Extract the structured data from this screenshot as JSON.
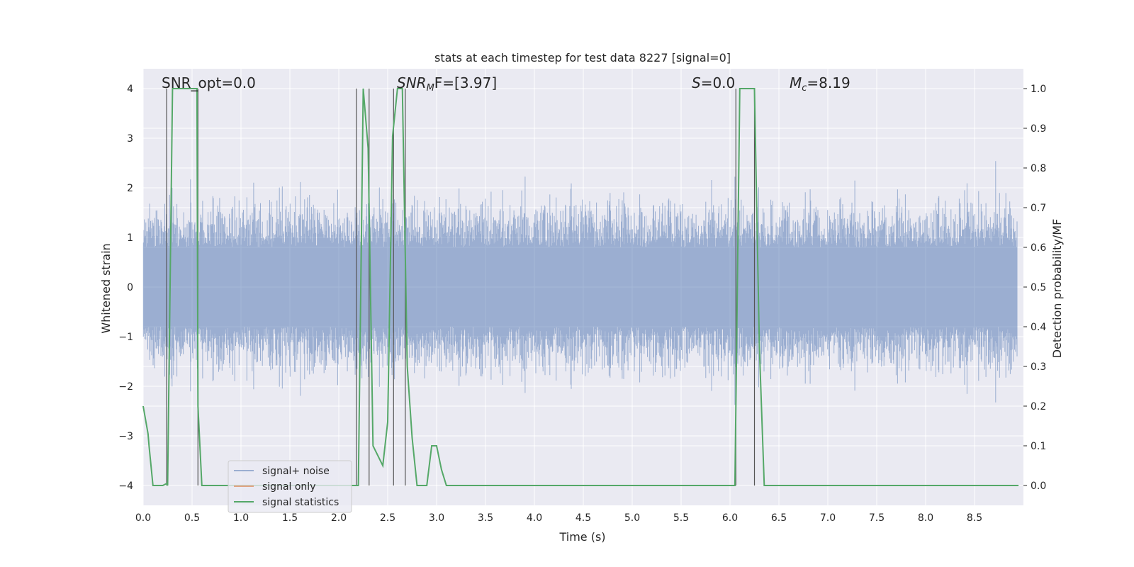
{
  "chart_data": {
    "type": "line",
    "title": "stats at each timestep for test data 8227 [signal=0]",
    "xlabel": "Time (s)",
    "ylabel_left": "Whitened strain",
    "ylabel_right": "Detection probability/MF",
    "xlim": [
      0.0,
      9.0
    ],
    "ylim_left": [
      -4.4,
      4.4
    ],
    "ylim_right": [
      -0.05,
      1.05
    ],
    "x_ticks": [
      "0.0",
      "0.5",
      "1.0",
      "1.5",
      "2.0",
      "2.5",
      "3.0",
      "3.5",
      "4.0",
      "4.5",
      "5.0",
      "5.5",
      "6.0",
      "6.5",
      "7.0",
      "7.5",
      "8.0",
      "8.5"
    ],
    "y_left_ticks": [
      "4",
      "3",
      "2",
      "1",
      "0",
      "−1",
      "−2",
      "−3",
      "−4"
    ],
    "y_right_ticks": [
      "1.0",
      "0.9",
      "0.8",
      "0.7",
      "0.6",
      "0.5",
      "0.4",
      "0.3",
      "0.2",
      "0.1",
      "0.0"
    ],
    "grid": true,
    "legend_position": "lower-left",
    "annotations": {
      "snr_opt": "SNR_opt=0.0",
      "snr_mf_name": "SNR",
      "snr_mf_sub": "M",
      "snr_mf_rest": "F=[3.97]",
      "s_name": "S",
      "s_rest": "=0.0",
      "mc_name": "M",
      "mc_sub": "c",
      "mc_rest": "=8.19"
    },
    "series": [
      {
        "name": "signal+ noise",
        "color": "#4c72b0",
        "description": "whitened strain time series, Gaussian-like noise with amplitude roughly within ±4"
      },
      {
        "name": "signal only",
        "color": "#dd8452",
        "values": []
      },
      {
        "name": "signal statistics",
        "color": "#55a868",
        "axis": "right",
        "x": [
          0.0,
          0.05,
          0.06,
          0.1,
          0.2,
          0.24,
          0.25,
          0.3,
          0.55,
          0.56,
          0.6,
          0.7,
          0.8,
          0.9,
          1.0,
          2.1,
          2.2,
          2.25,
          2.3,
          2.35,
          2.45,
          2.5,
          2.55,
          2.6,
          2.65,
          2.7,
          2.75,
          2.8,
          2.9,
          2.95,
          3.0,
          3.05,
          3.1,
          3.15,
          3.5,
          6.05,
          6.1,
          6.15,
          6.25,
          6.3,
          6.35,
          8.95
        ],
        "values": [
          0.2,
          0.13,
          0.1,
          0.0,
          0.0,
          0.005,
          0.0,
          1.0,
          1.0,
          0.2,
          0.0,
          0.0,
          0.0,
          0.0,
          0.0,
          0.0,
          0.0,
          1.0,
          0.85,
          0.1,
          0.05,
          0.16,
          0.88,
          1.0,
          1.0,
          0.3,
          0.12,
          0.0,
          0.0,
          0.1,
          0.1,
          0.04,
          0.0,
          0.0,
          0.0,
          0.0,
          1.0,
          1.0,
          1.0,
          0.35,
          0.0,
          0.0
        ]
      }
    ],
    "vertical_markers_x": [
      0.24,
      0.56,
      2.18,
      2.31,
      2.56,
      2.68,
      6.06,
      6.25
    ]
  },
  "legend": {
    "noise_label": "signal+ noise",
    "signal_label": "signal only",
    "stats_label": "signal statistics"
  },
  "colors": {
    "axes_bg": "#eaeaf2",
    "grid": "#ffffff",
    "noise": "#4c72b0",
    "signal": "#dd8452",
    "stats": "#55a868",
    "marker": "#555555"
  }
}
